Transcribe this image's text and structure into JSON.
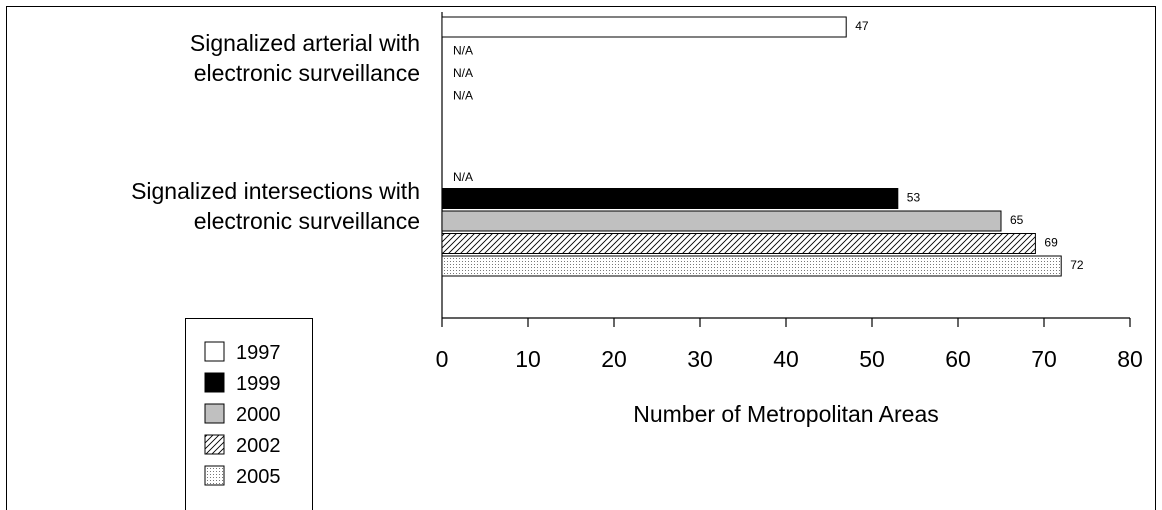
{
  "chart_data": {
    "type": "bar",
    "orientation": "horizontal",
    "categories": [
      [
        "Signalized arterial with",
        "electronic surveillance"
      ],
      [
        "Signalized intersections with",
        "electronic surveillance"
      ]
    ],
    "series": [
      {
        "name": "1997",
        "values": [
          47,
          null
        ],
        "labels": [
          "47",
          "N/A"
        ],
        "fill": "white"
      },
      {
        "name": "1999",
        "values": [
          null,
          53
        ],
        "labels": [
          "N/A",
          "53"
        ],
        "fill": "black"
      },
      {
        "name": "2000",
        "values": [
          null,
          65
        ],
        "labels": [
          "N/A",
          "65"
        ],
        "fill": "gray"
      },
      {
        "name": "2002",
        "values": [
          null,
          69
        ],
        "labels": [
          "N/A",
          "69"
        ],
        "fill": "diagonal-hatch"
      },
      {
        "name": "2005",
        "values": [
          null,
          72
        ],
        "labels": [
          "",
          "72"
        ],
        "fill": "dotted"
      }
    ],
    "xlabel": "Number of Metropolitan Areas",
    "ylabel": "",
    "xlim": [
      0,
      80
    ],
    "xticks": [
      0,
      10,
      20,
      30,
      40,
      50,
      60,
      70,
      80
    ],
    "grid": false,
    "legend": "bottom-left",
    "colors": {
      "bar_stroke": "#000000",
      "gray_fill": "#c0c0c0"
    }
  }
}
